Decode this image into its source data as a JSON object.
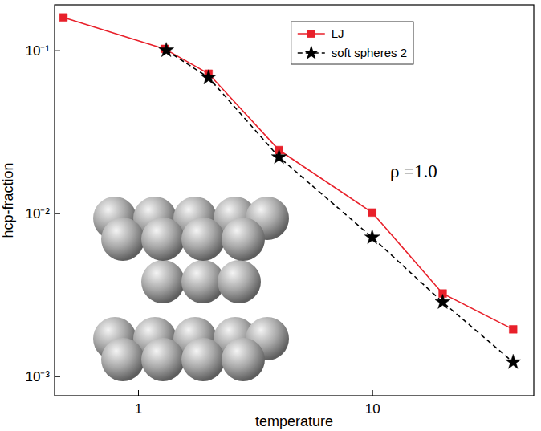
{
  "chart_data": {
    "type": "line",
    "x_label": "temperature",
    "y_label": "hcp-fraction",
    "annotation": "ρ =1.0",
    "log": true,
    "legend": "upper right",
    "xlim": [
      0.44,
      49
    ],
    "ylim": [
      0.00076,
      0.19
    ],
    "xticks": [
      1,
      10
    ],
    "yticks": [
      {
        "value": 0.001,
        "label": "10⁻³"
      },
      {
        "value": 0.01,
        "label": "10⁻²"
      },
      {
        "value": 0.1,
        "label": "10⁻¹"
      }
    ],
    "series": [
      {
        "name": "LJ",
        "color": "#e8202a",
        "marker": "square",
        "line_style": "solid",
        "x": [
          0.48,
          1.3,
          2,
          4,
          10,
          20,
          40
        ],
        "values": [
          0.159,
          0.102,
          0.0718,
          0.0244,
          0.0101,
          0.00322,
          0.00194
        ]
      },
      {
        "name": "soft spheres 2",
        "color": "#000000",
        "marker": "star",
        "line_style": "dashed",
        "x": [
          1.32,
          2,
          4,
          10,
          20,
          40
        ],
        "values": [
          0.1,
          0.068,
          0.0221,
          0.00711,
          0.00285,
          0.00122
        ]
      }
    ]
  }
}
